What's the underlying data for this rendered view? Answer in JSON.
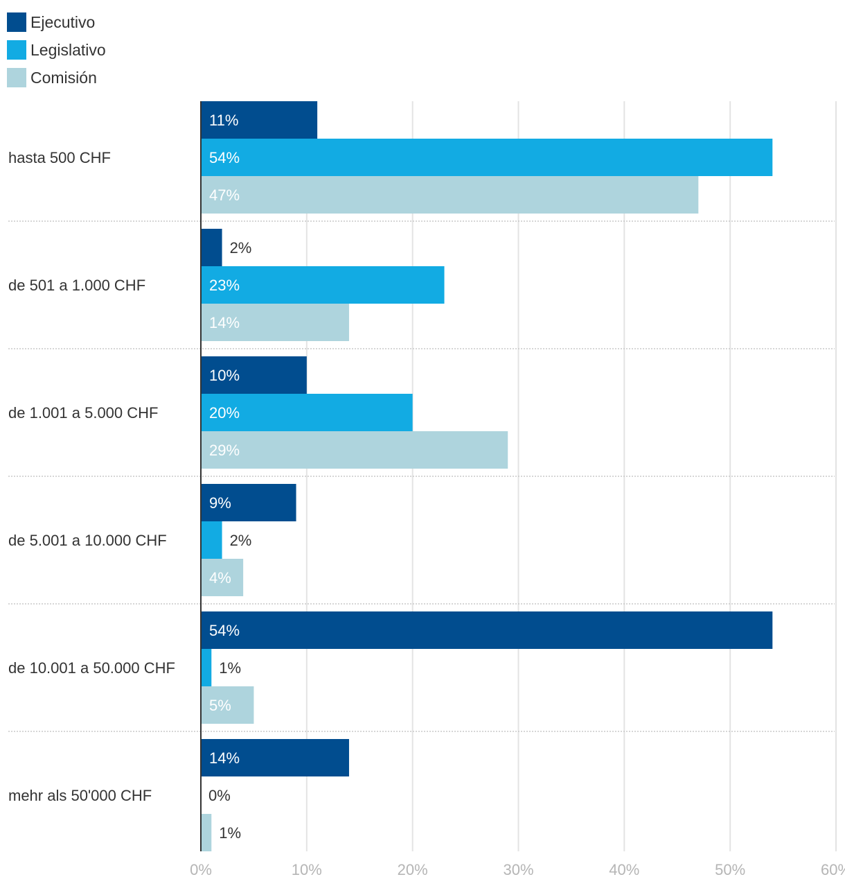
{
  "chart_data": {
    "type": "bar",
    "orientation": "horizontal",
    "categories": [
      "hasta 500 CHF",
      "de 501 a 1.000 CHF",
      "de 1.001 a 5.000 CHF",
      "de 5.001 a 10.000 CHF",
      "de 10.001 a 50.000 CHF",
      "mehr als 50'000 CHF"
    ],
    "series": [
      {
        "name": "Ejecutivo",
        "color": "#014d8f",
        "values": [
          11,
          2,
          10,
          9,
          54,
          14
        ]
      },
      {
        "name": "Legislativo",
        "color": "#12abe3",
        "values": [
          54,
          23,
          20,
          2,
          1,
          0
        ]
      },
      {
        "name": "Comisión",
        "color": "#aed4dd",
        "values": [
          47,
          14,
          29,
          4,
          5,
          1
        ]
      }
    ],
    "xlim": [
      0,
      60
    ],
    "xticks": [
      "0%",
      "10%",
      "20%",
      "30%",
      "40%",
      "50%",
      "60%"
    ],
    "tick_values": [
      0,
      10,
      20,
      30,
      40,
      50,
      60
    ],
    "value_suffix": "%",
    "grid": true,
    "legend_placement": "top-left"
  }
}
